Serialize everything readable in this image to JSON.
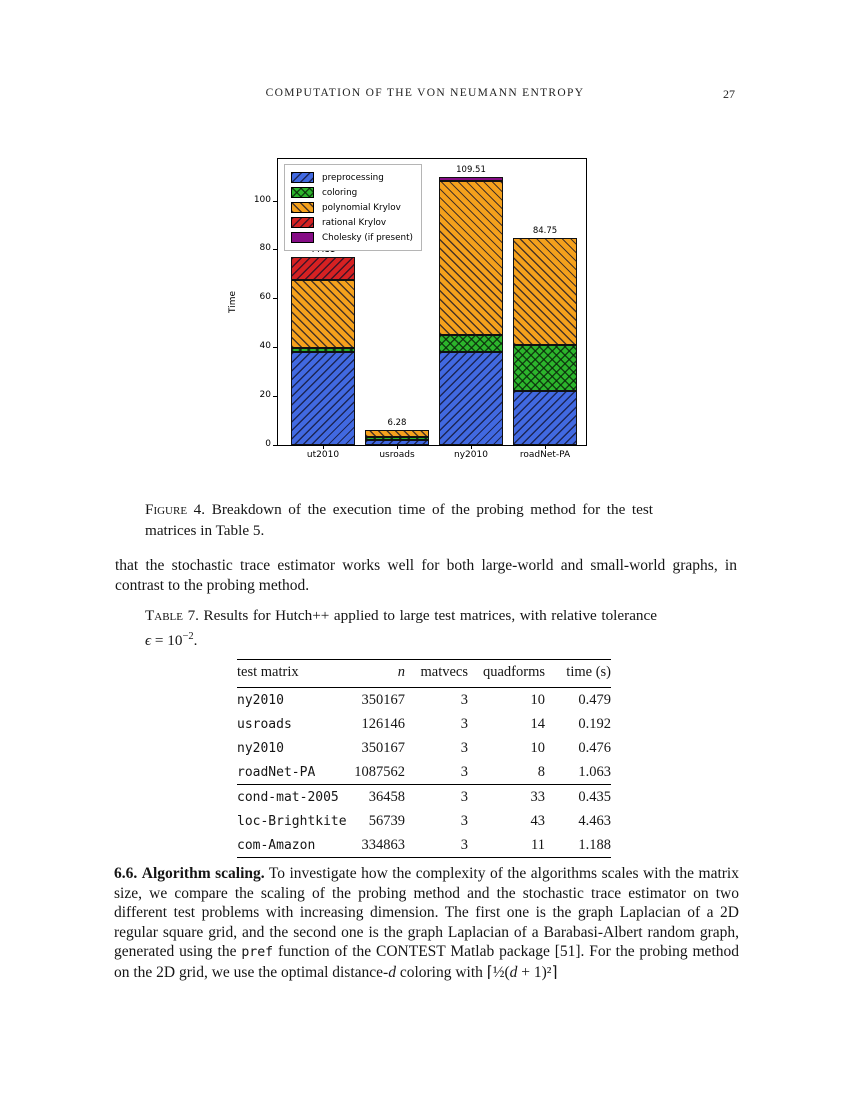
{
  "header": {
    "title": "COMPUTATION OF THE VON NEUMANN ENTROPY",
    "page_number": "27"
  },
  "chart_data": {
    "type": "bar",
    "stacked": true,
    "title": "",
    "xlabel": "",
    "ylabel": "Time",
    "categories": [
      "ut2010",
      "usroads",
      "ny2010",
      "roadNet-PA"
    ],
    "series": [
      {
        "name": "preprocessing",
        "color": "#4169E1",
        "hatch": "forward",
        "values": [
          38.0,
          2.2,
          38.0,
          22.0
        ]
      },
      {
        "name": "coloring",
        "color": "#2CB52C",
        "hatch": "cross",
        "values": [
          1.5,
          1.1,
          7.0,
          19.0
        ]
      },
      {
        "name": "polynomial Krylov",
        "color": "#F5A11C",
        "hatch": "backward",
        "values": [
          28.0,
          2.98,
          63.0,
          43.75
        ]
      },
      {
        "name": "rational Krylov",
        "color": "#D62122",
        "hatch": "forward",
        "values": [
          9.61,
          0,
          0,
          0
        ]
      },
      {
        "name": "Cholesky (if present)",
        "color": "#850C85",
        "hatch": "none",
        "values": [
          0,
          0,
          1.51,
          0
        ]
      }
    ],
    "totals": [
      "77.11",
      "6.28",
      "109.51",
      "84.75"
    ],
    "yticks": [
      0,
      20,
      40,
      60,
      80,
      100
    ],
    "ylim": [
      0,
      117
    ],
    "grid": false,
    "legend_position": "upper left"
  },
  "figure_caption": {
    "label": "Figure 4.",
    "text": "Breakdown of the execution time of the probing method for the test matrices in Table 5."
  },
  "paragraph1": "that the stochastic trace estimator works well for both large-world and small-world graphs, in contrast to the probing method.",
  "table_caption": {
    "label": "Table 7.",
    "before": "Results for Hutch++ applied to large test matrices, with relative tolerance",
    "eps": "ϵ",
    "mid": " = 10",
    "sup": "−2",
    "after": "."
  },
  "table": {
    "headers": [
      "test matrix",
      "n",
      "matvecs",
      "quadforms",
      "time (s)"
    ],
    "groups": [
      [
        [
          "ny2010",
          "350167",
          "3",
          "10",
          "0.479"
        ],
        [
          "usroads",
          "126146",
          "3",
          "14",
          "0.192"
        ],
        [
          "ny2010",
          "350167",
          "3",
          "10",
          "0.476"
        ],
        [
          "roadNet-PA",
          "1087562",
          "3",
          "8",
          "1.063"
        ]
      ],
      [
        [
          "cond-mat-2005",
          "36458",
          "3",
          "33",
          "0.435"
        ],
        [
          "loc-Brightkite",
          "56739",
          "3",
          "43",
          "4.463"
        ],
        [
          "com-Amazon",
          "334863",
          "3",
          "11",
          "1.188"
        ]
      ]
    ]
  },
  "section": {
    "number": "6.6.",
    "title": "Algorithm scaling.",
    "body1": "To investigate how the complexity of the algorithms scales with the matrix size, we compare the scaling of the probing method and the stochastic trace estimator on two different test problems with increasing dimension. The first one is the graph Laplacian of a 2D regular square grid, and the second one is the graph Laplacian of a Barabasi-Albert random graph, generated using the",
    "code": "pref",
    "body2": " function of the CONTEST Matlab package [51]. For the probing method on the 2D grid, we use the optimal distance-",
    "var_d": "d",
    "body3": " coloring with ",
    "math_open": "⌈½(",
    "math_d": "d",
    "math_rest": " + 1)²⌉"
  }
}
